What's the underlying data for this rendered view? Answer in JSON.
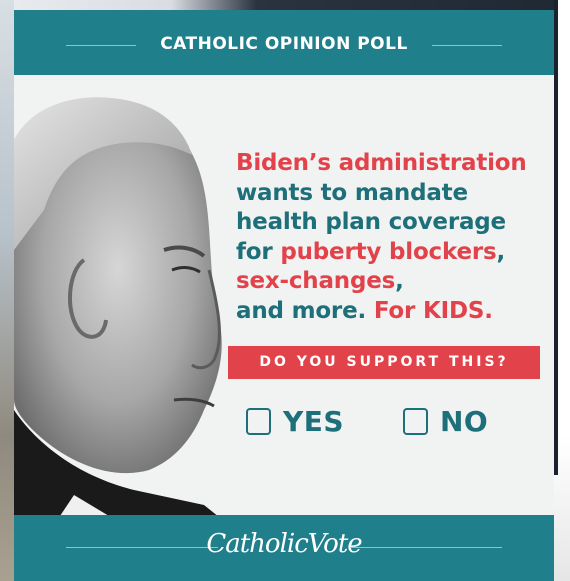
{
  "card": {
    "header_title": "CATHOLIC OPINION POLL",
    "headline": {
      "line1": "Biden’s administration",
      "line2": "wants to mandate",
      "line3": "health plan coverage",
      "line4_pre": "for ",
      "line4_red": "puberty blockers",
      "line4_post": ",",
      "line5_red": "sex-changes",
      "line5_post": ",",
      "line6_pre": "and more. ",
      "line6_red": "For KIDS."
    },
    "question": "DO YOU SUPPORT THIS?",
    "options": {
      "yes": "YES",
      "no": "NO"
    },
    "footer_logo": "CatholicVote"
  },
  "colors": {
    "teal": "#1f7f8b",
    "red": "#e2434b",
    "headline_teal": "#1d6f79"
  }
}
